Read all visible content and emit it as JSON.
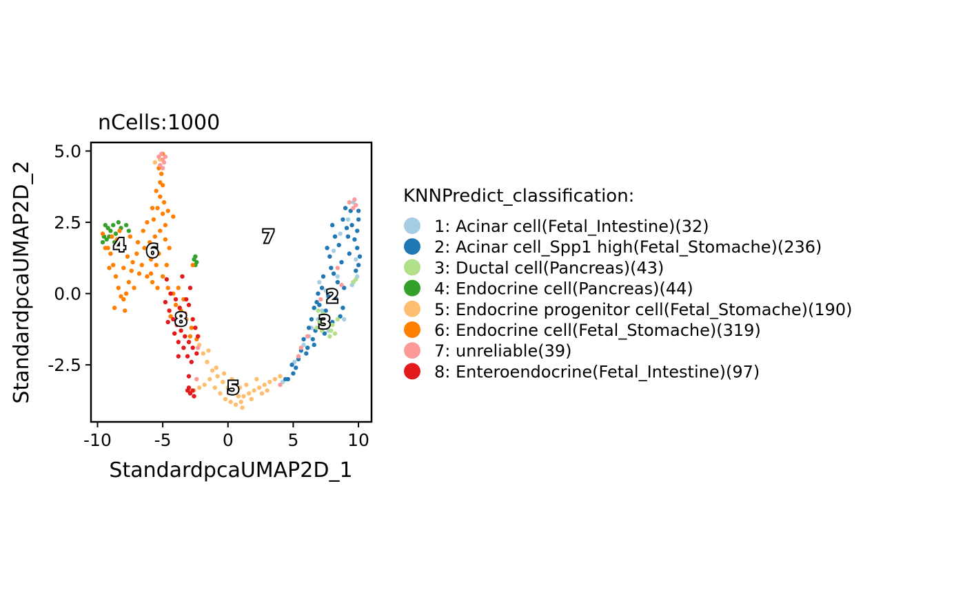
{
  "chart_data": {
    "type": "scatter",
    "title": "nCells:1000",
    "xlabel": "StandardpcaUMAP2D_1",
    "ylabel": "StandardpcaUMAP2D_2",
    "xlim": [
      -10.5,
      11.0
    ],
    "ylim": [
      -4.5,
      5.3
    ],
    "x_ticks": [
      -10,
      -5,
      0,
      5,
      10
    ],
    "x_tick_labels": [
      "-10",
      "-5",
      "0",
      "5",
      "10"
    ],
    "y_ticks": [
      -2.5,
      0.0,
      2.5,
      5.0
    ],
    "y_tick_labels": [
      "-2.5",
      "0.0",
      "2.5",
      "5.0"
    ],
    "grid": false,
    "legend_position": "right",
    "legend_title": "KNNPredict_classification:",
    "series": [
      {
        "id": 1,
        "name": "1: Acinar cell(Fetal_Intestine)(32)",
        "color": "#A6CEE3",
        "points": [
          [
            7.2,
            -0.6
          ],
          [
            7.8,
            -0.2
          ],
          [
            9.6,
            3.2
          ],
          [
            9.8,
            1.2
          ],
          [
            8.4,
            0.6
          ],
          [
            6.4,
            -1.2
          ],
          [
            5.8,
            -1.8
          ],
          [
            7.5,
            0.1
          ],
          [
            9.2,
            2.6
          ],
          [
            8.9,
            -0.9
          ],
          [
            4.2,
            -3.1
          ],
          [
            6.9,
            -0.9
          ],
          [
            9.9,
            0.6
          ],
          [
            7.0,
            0.4
          ],
          [
            8.1,
            1.5
          ],
          [
            5.1,
            -2.4
          ],
          [
            9.5,
            0.3
          ],
          [
            6.2,
            -1.5
          ],
          [
            7.7,
            -1.3
          ],
          [
            8.6,
            2.1
          ]
        ]
      },
      {
        "id": 2,
        "name": "2: Acinar cell_Spp1 high(Fetal_Stomache)(236)",
        "color": "#1F78B4",
        "points": [
          [
            10.0,
            1.0
          ],
          [
            9.6,
            0.4
          ],
          [
            8.8,
            -0.5
          ],
          [
            8.0,
            -1.0
          ],
          [
            7.4,
            -1.4
          ],
          [
            6.6,
            -1.8
          ],
          [
            6.0,
            -2.1
          ],
          [
            5.2,
            -2.6
          ],
          [
            4.6,
            -3.0
          ],
          [
            9.9,
            2.2
          ],
          [
            9.4,
            2.9
          ],
          [
            8.8,
            2.6
          ],
          [
            8.2,
            2.0
          ],
          [
            7.8,
            1.3
          ],
          [
            7.3,
            0.6
          ],
          [
            6.9,
            0.0
          ],
          [
            6.6,
            -0.5
          ],
          [
            6.2,
            -1.2
          ],
          [
            9.9,
            1.6
          ],
          [
            10.0,
            2.6
          ],
          [
            9.0,
            3.0
          ],
          [
            8.0,
            2.4
          ],
          [
            7.6,
            1.6
          ],
          [
            9.3,
            1.4
          ],
          [
            8.7,
            1.1
          ],
          [
            8.9,
            0.2
          ],
          [
            8.3,
            -0.2
          ],
          [
            7.5,
            -0.6
          ],
          [
            7.1,
            -0.9
          ],
          [
            6.7,
            -1.3
          ],
          [
            5.6,
            -2.0
          ],
          [
            5.0,
            -2.8
          ],
          [
            9.7,
            1.9
          ],
          [
            9.1,
            2.3
          ],
          [
            8.5,
            1.7
          ],
          [
            7.9,
            0.9
          ],
          [
            7.2,
            0.2
          ],
          [
            6.8,
            -0.3
          ],
          [
            6.4,
            -0.9
          ],
          [
            5.8,
            -1.6
          ],
          [
            10.1,
            1.3
          ],
          [
            9.5,
            2.4
          ],
          [
            8.4,
            0.4
          ],
          [
            7.7,
            -0.1
          ],
          [
            6.5,
            -1.6
          ],
          [
            5.4,
            -2.3
          ],
          [
            4.9,
            -2.5
          ],
          [
            4.4,
            -3.0
          ],
          [
            8.6,
            -0.8
          ],
          [
            9.8,
            0.8
          ],
          [
            10.0,
            2.9
          ],
          [
            9.2,
            2.0
          ],
          [
            8.1,
            0.7
          ],
          [
            7.0,
            -0.4
          ],
          [
            6.1,
            -1.9
          ]
        ]
      },
      {
        "id": 3,
        "name": "3: Ductal cell(Pancreas)(43)",
        "color": "#B2DF8A",
        "points": [
          [
            7.0,
            -1.0
          ],
          [
            7.4,
            -1.1
          ],
          [
            7.9,
            -1.3
          ],
          [
            8.2,
            -1.4
          ],
          [
            7.6,
            -0.8
          ],
          [
            6.9,
            -0.6
          ],
          [
            8.4,
            -0.9
          ],
          [
            7.2,
            -1.3
          ],
          [
            9.8,
            0.5
          ],
          [
            9.6,
            0.4
          ],
          [
            7.8,
            -1.5
          ],
          [
            6.8,
            -1.2
          ],
          [
            8.0,
            -1.1
          ],
          [
            7.3,
            -0.7
          ]
        ]
      },
      {
        "id": 4,
        "name": "4: Endocrine cell(Pancreas)(44)",
        "color": "#33A02C",
        "points": [
          [
            -9.4,
            2.4
          ],
          [
            -9.2,
            2.3
          ],
          [
            -9.0,
            2.2
          ],
          [
            -8.8,
            2.4
          ],
          [
            -8.6,
            2.1
          ],
          [
            -8.2,
            2.3
          ],
          [
            -7.8,
            2.4
          ],
          [
            -7.6,
            2.2
          ],
          [
            -9.5,
            2.0
          ],
          [
            -9.3,
            1.9
          ],
          [
            -9.1,
            2.0
          ],
          [
            -8.7,
            1.8
          ],
          [
            -2.5,
            1.3
          ],
          [
            -2.4,
            1.1
          ],
          [
            -2.6,
            1.2
          ],
          [
            -2.5,
            1.0
          ],
          [
            -8.4,
            2.5
          ],
          [
            -9.6,
            1.8
          ]
        ]
      },
      {
        "id": 5,
        "name": "5: Endocrine progenitor cell(Fetal_Stomache)(190)",
        "color": "#FDBF6F",
        "points": [
          [
            -2.2,
            -1.8
          ],
          [
            -1.9,
            -2.1
          ],
          [
            -1.6,
            -2.4
          ],
          [
            -1.2,
            -2.7
          ],
          [
            -0.8,
            -2.9
          ],
          [
            -0.4,
            -3.1
          ],
          [
            0.0,
            -3.3
          ],
          [
            0.4,
            -3.5
          ],
          [
            0.8,
            -3.6
          ],
          [
            1.2,
            -3.6
          ],
          [
            1.6,
            -3.5
          ],
          [
            2.0,
            -3.4
          ],
          [
            2.4,
            -3.3
          ],
          [
            2.8,
            -3.2
          ],
          [
            3.2,
            -3.1
          ],
          [
            3.6,
            -3.0
          ],
          [
            4.0,
            -2.9
          ],
          [
            -1.0,
            -3.3
          ],
          [
            -0.6,
            -3.5
          ],
          [
            -0.2,
            -3.7
          ],
          [
            0.2,
            -3.8
          ],
          [
            0.6,
            -3.9
          ],
          [
            1.0,
            -3.8
          ],
          [
            -1.4,
            -3.0
          ],
          [
            -1.8,
            -3.2
          ],
          [
            -2.2,
            -3.3
          ],
          [
            -2.6,
            -3.4
          ],
          [
            0.5,
            -3.2
          ],
          [
            1.4,
            -3.2
          ],
          [
            2.2,
            -3.0
          ],
          [
            -0.3,
            -2.8
          ],
          [
            -1.5,
            -2.0
          ],
          [
            0.9,
            -3.3
          ],
          [
            1.8,
            -3.7
          ],
          [
            0.3,
            -3.0
          ],
          [
            -0.9,
            -2.6
          ],
          [
            2.6,
            -3.5
          ],
          [
            3.0,
            -3.4
          ],
          [
            1.1,
            -4.0
          ],
          [
            -5.6,
            4.6
          ],
          [
            -5.2,
            4.7
          ],
          [
            -2.9,
            -3.4
          ]
        ]
      },
      {
        "id": 6,
        "name": "6: Endocrine cell(Fetal_Stomache)(319)",
        "color": "#FF7F00",
        "points": [
          [
            -9.2,
            1.6
          ],
          [
            -9.0,
            1.4
          ],
          [
            -8.8,
            1.0
          ],
          [
            -8.6,
            0.6
          ],
          [
            -8.4,
            0.2
          ],
          [
            -8.2,
            -0.1
          ],
          [
            -8.0,
            -0.2
          ],
          [
            -7.8,
            0.0
          ],
          [
            -7.6,
            0.4
          ],
          [
            -7.4,
            0.8
          ],
          [
            -8.9,
            2.0
          ],
          [
            -8.5,
            1.9
          ],
          [
            -8.1,
            1.6
          ],
          [
            -7.7,
            1.3
          ],
          [
            -7.3,
            1.1
          ],
          [
            -9.4,
            1.6
          ],
          [
            -9.6,
            2.1
          ],
          [
            -8.3,
            2.2
          ],
          [
            -7.5,
            2.0
          ],
          [
            -7.0,
            1.4
          ],
          [
            -6.6,
            1.0
          ],
          [
            -6.2,
            0.6
          ],
          [
            -5.8,
            0.4
          ],
          [
            -5.4,
            0.2
          ],
          [
            -6.0,
            1.8
          ],
          [
            -5.6,
            2.0
          ],
          [
            -5.2,
            2.2
          ],
          [
            -4.8,
            2.4
          ],
          [
            -5.0,
            2.8
          ],
          [
            -5.4,
            3.0
          ],
          [
            -5.2,
            3.4
          ],
          [
            -5.0,
            3.8
          ],
          [
            -5.1,
            4.2
          ],
          [
            -5.3,
            4.4
          ],
          [
            -5.5,
            3.6
          ],
          [
            -4.9,
            3.2
          ],
          [
            -5.7,
            2.6
          ],
          [
            -6.2,
            2.5
          ],
          [
            -6.5,
            2.2
          ],
          [
            -6.9,
            1.8
          ],
          [
            -6.4,
            1.6
          ],
          [
            -5.9,
            1.2
          ],
          [
            -5.5,
            1.0
          ],
          [
            -5.0,
            0.6
          ],
          [
            -4.6,
            0.2
          ],
          [
            -4.2,
            0.0
          ],
          [
            -4.0,
            -0.4
          ],
          [
            -3.6,
            -0.6
          ],
          [
            -3.2,
            -0.9
          ],
          [
            -2.8,
            -1.2
          ],
          [
            -2.4,
            -1.6
          ],
          [
            -8.7,
            -0.5
          ],
          [
            -7.9,
            -0.6
          ],
          [
            -9.1,
            0.9
          ],
          [
            -8.0,
            0.9
          ],
          [
            -4.5,
            1.6
          ],
          [
            -4.7,
            1.0
          ],
          [
            -5.8,
            3.0
          ],
          [
            -4.6,
            2.9
          ],
          [
            -4.2,
            2.7
          ],
          [
            -6.8,
            0.7
          ],
          [
            -7.2,
            0.2
          ],
          [
            -4.8,
            1.9
          ],
          [
            -5.3,
            1.4
          ],
          [
            -3.8,
            0.2
          ],
          [
            -3.4,
            -0.2
          ],
          [
            -2.9,
            -1.5
          ],
          [
            -4.4,
            -0.8
          ],
          [
            -5.0,
            4.9
          ],
          [
            -5.2,
            3.9
          ],
          [
            -2.7,
            1.0
          ],
          [
            -5.9,
            0.7
          ]
        ]
      },
      {
        "id": 7,
        "name": "7: unreliable(39)",
        "color": "#FB9A99",
        "points": [
          [
            -5.1,
            4.9
          ],
          [
            -5.0,
            4.7
          ],
          [
            -5.2,
            4.5
          ],
          [
            -4.9,
            4.6
          ],
          [
            -5.0,
            4.4
          ],
          [
            -4.8,
            4.8
          ],
          [
            -5.3,
            4.8
          ],
          [
            9.7,
            3.3
          ],
          [
            9.8,
            3.1
          ],
          [
            9.6,
            3.0
          ],
          [
            8.4,
            0.9
          ],
          [
            5.6,
            -1.9
          ],
          [
            5.4,
            -2.2
          ],
          [
            6.1,
            -1.5
          ],
          [
            7.1,
            -0.2
          ],
          [
            -2.4,
            -3.0
          ],
          [
            4.0,
            -3.2
          ],
          [
            -2.3,
            -1.9
          ],
          [
            8.7,
            0.3
          ],
          [
            9.3,
            3.2
          ]
        ]
      },
      {
        "id": 8,
        "name": "8: Enteroendocrine(Fetal_Intestine)(97)",
        "color": "#E31A1C",
        "points": [
          [
            -4.8,
            -0.3
          ],
          [
            -4.5,
            -0.6
          ],
          [
            -4.2,
            -0.9
          ],
          [
            -3.9,
            -1.1
          ],
          [
            -3.6,
            -1.3
          ],
          [
            -3.3,
            -1.5
          ],
          [
            -3.0,
            -1.7
          ],
          [
            -2.7,
            -1.9
          ],
          [
            -2.4,
            -2.1
          ],
          [
            -4.4,
            0.0
          ],
          [
            -4.0,
            -0.2
          ],
          [
            -3.7,
            -0.5
          ],
          [
            -3.3,
            -0.7
          ],
          [
            -3.0,
            -0.4
          ],
          [
            -2.7,
            -0.9
          ],
          [
            -2.5,
            -1.2
          ],
          [
            -2.3,
            -1.5
          ],
          [
            -4.6,
            -1.0
          ],
          [
            -4.1,
            -1.4
          ],
          [
            -3.8,
            -1.7
          ],
          [
            -3.4,
            -1.9
          ],
          [
            -3.1,
            -2.2
          ],
          [
            -2.8,
            -2.4
          ],
          [
            -3.0,
            -3.3
          ],
          [
            -2.9,
            -3.5
          ],
          [
            -2.7,
            -3.4
          ],
          [
            -3.1,
            -3.4
          ],
          [
            -2.6,
            -3.6
          ],
          [
            -3.0,
            -2.9
          ],
          [
            -3.2,
            -0.2
          ],
          [
            -4.7,
            0.5
          ],
          [
            -3.5,
            0.6
          ],
          [
            -2.9,
            0.2
          ],
          [
            -3.8,
            -2.2
          ]
        ]
      }
    ],
    "cluster_labels": [
      {
        "text": "4",
        "x": -8.3,
        "y": 1.7
      },
      {
        "text": "6",
        "x": -5.8,
        "y": 1.5
      },
      {
        "text": "7",
        "x": 3.1,
        "y": 2.0
      },
      {
        "text": "2",
        "x": 8.0,
        "y": -0.1
      },
      {
        "text": "3",
        "x": 7.4,
        "y": -1.0
      },
      {
        "text": "8",
        "x": -3.6,
        "y": -0.9
      },
      {
        "text": "5",
        "x": 0.4,
        "y": -3.3
      }
    ]
  }
}
